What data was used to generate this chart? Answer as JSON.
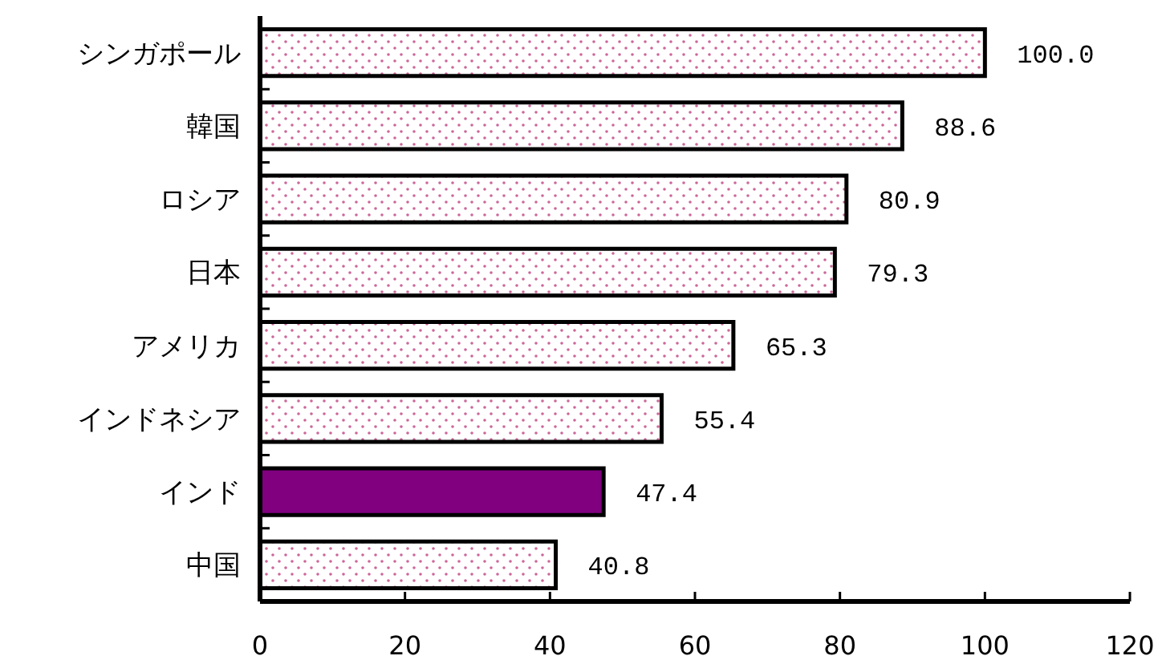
{
  "chart_data": {
    "type": "bar",
    "orientation": "horizontal",
    "categories": [
      "シンガポール",
      "韓国",
      "ロシア",
      "日本",
      "アメリカ",
      "インドネシア",
      "インド",
      "中国"
    ],
    "values": [
      100.0,
      88.6,
      80.9,
      79.3,
      65.3,
      55.4,
      47.4,
      40.8
    ],
    "value_labels": [
      "100.0",
      "88.6",
      "80.9",
      "79.3",
      "65.3",
      "55.4",
      "47.4",
      "40.8"
    ],
    "colors": [
      "#cc6699",
      "#cc6699",
      "#cc6699",
      "#cc6699",
      "#cc6699",
      "#cc6699",
      "#800080",
      "#cc6699"
    ],
    "xlim": [
      0,
      120
    ],
    "xticks": [
      0,
      20,
      40,
      60,
      80,
      100,
      120
    ],
    "grid": false
  }
}
